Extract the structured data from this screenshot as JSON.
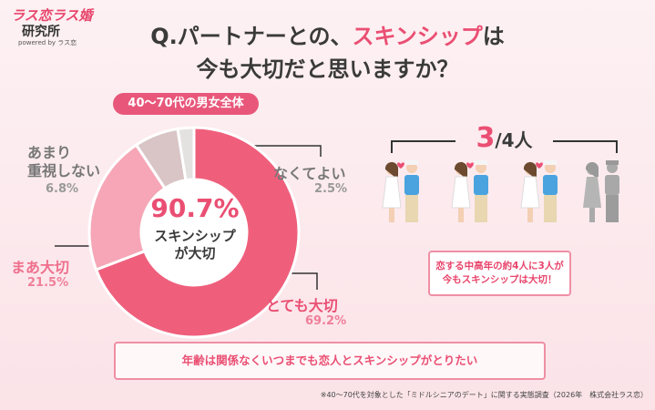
{
  "logo": {
    "name": "ラス恋ラス婚",
    "sub": "研究所",
    "powered": "powered by ラス恋"
  },
  "chart_data": {
    "type": "pie",
    "title": [
      "Q.パートナーとの、",
      "スキンシップ",
      "は"
    ],
    "title_line2": "今も大切だと思いますか？",
    "subtitle": "40〜70代の男女全体",
    "categories": [
      "とても大切",
      "まあ大切",
      "あまり\n重視しない",
      "なくてよい"
    ],
    "values": [
      69.2,
      21.5,
      6.8,
      2.5
    ],
    "value_labels": [
      "69.2%",
      "21.5%",
      "6.8%",
      "2.5%"
    ],
    "colors": [
      "#ef5f7c",
      "#f6a6b6",
      "#d9c5c6",
      "#e4e1e1"
    ],
    "center_value": "90.7%",
    "center_text": "スキンシップ\nが大切"
  },
  "ratio": {
    "numerator": "3",
    "rest": "/4人"
  },
  "callout": "恋する中高年の約4人に3人が\n今もスキンシップは大切！",
  "message": "年齢は関係なくいつまでも恋人とスキンシップがとりたい",
  "footnote": "※40〜70代を対象とした「ミドルシニアのデート」に関する実態調査（2026年　株式会社ラス恋）"
}
